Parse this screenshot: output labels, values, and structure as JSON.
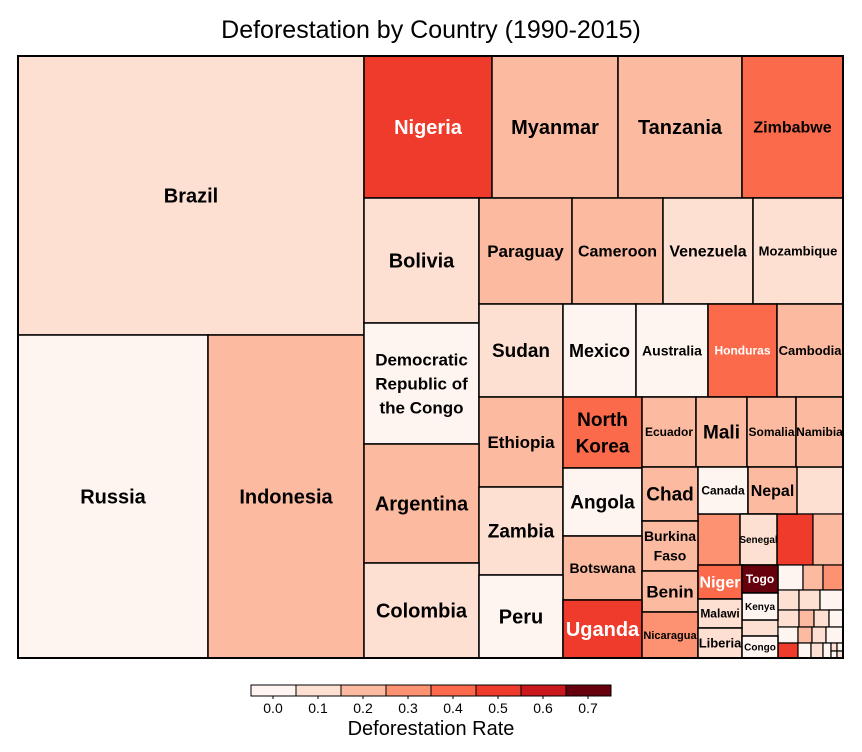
{
  "chart_data": {
    "type": "treemap",
    "title": "Deforestation by Country (1990-2015)",
    "color_scale": {
      "title": "Deforestation Rate",
      "ticks": [
        "0.0",
        "0.1",
        "0.2",
        "0.3",
        "0.4",
        "0.5",
        "0.6",
        "0.7"
      ],
      "colors": [
        "#fff5f0",
        "#fee0d2",
        "#fcbba1",
        "#fc9272",
        "#fb6a4a",
        "#ef3b2c",
        "#cb181d",
        "#99000d",
        "#67000d"
      ],
      "placement": "bottom-center"
    },
    "cells": [
      {
        "label": "Brazil",
        "rate": 0.1
      },
      {
        "label": "Russia",
        "rate": 0.05
      },
      {
        "label": "Indonesia",
        "rate": 0.3
      },
      {
        "label": "Nigeria",
        "rate": 0.6
      },
      {
        "label": "Myanmar",
        "rate": 0.3
      },
      {
        "label": "Tanzania",
        "rate": 0.2
      },
      {
        "label": "Zimbabwe",
        "rate": 0.4
      },
      {
        "label": "Bolivia",
        "rate": 0.15
      },
      {
        "label": "Paraguay",
        "rate": 0.3
      },
      {
        "label": "Cameroon",
        "rate": 0.25
      },
      {
        "label": "Venezuela",
        "rate": 0.1
      },
      {
        "label": "Mozambique",
        "rate": 0.1
      },
      {
        "label": "Democratic Republic of the Congo",
        "lines": [
          "Democratic",
          "Republic of",
          "the Congo"
        ],
        "rate": 0.05
      },
      {
        "label": "Sudan",
        "rate": 0.15
      },
      {
        "label": "Mexico",
        "rate": 0.05
      },
      {
        "label": "Australia",
        "rate": 0.05
      },
      {
        "label": "Honduras",
        "rate": 0.45
      },
      {
        "label": "Cambodia",
        "rate": 0.3
      },
      {
        "label": "Ethiopia",
        "rate": 0.3
      },
      {
        "label": "North Korea",
        "lines": [
          "North",
          "Korea"
        ],
        "rate": 0.4
      },
      {
        "label": "Ecuador",
        "rate": 0.2
      },
      {
        "label": "Mali",
        "rate": 0.3
      },
      {
        "label": "Somalia",
        "rate": 0.25
      },
      {
        "label": "Namibia",
        "rate": 0.2
      },
      {
        "label": "Argentina",
        "rate": 0.25
      },
      {
        "label": "Zambia",
        "rate": 0.1
      },
      {
        "label": "Angola",
        "rate": 0.05
      },
      {
        "label": "Chad",
        "rate": 0.25
      },
      {
        "label": "Canada",
        "rate": 0.0
      },
      {
        "label": "Nepal",
        "rate": 0.3
      },
      {
        "label": "Burkina Faso",
        "lines": [
          "Burkina",
          "Faso"
        ],
        "rate": 0.2
      },
      {
        "label": "Senegal",
        "rate": 0.1
      },
      {
        "label": "Botswana",
        "rate": 0.25
      },
      {
        "label": "Benin",
        "rate": 0.25
      },
      {
        "label": "Niger",
        "rate": 0.45
      },
      {
        "label": "Togo",
        "rate": 0.75
      },
      {
        "label": "Kenya",
        "rate": 0.05
      },
      {
        "label": "Colombia",
        "rate": 0.1
      },
      {
        "label": "Peru",
        "rate": 0.05
      },
      {
        "label": "Uganda",
        "rate": 0.55
      },
      {
        "label": "Malawi",
        "rate": 0.15
      },
      {
        "label": "Nicaragua",
        "rate": 0.35
      },
      {
        "label": "Liberia",
        "rate": 0.1
      },
      {
        "label": "Congo",
        "rate": 0.05
      }
    ]
  }
}
